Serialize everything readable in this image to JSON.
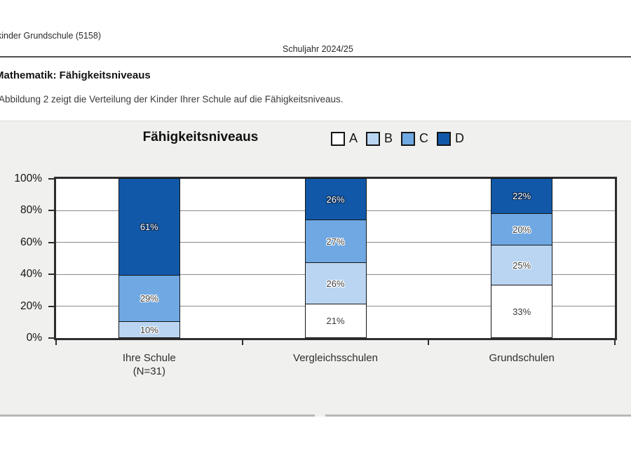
{
  "header": {
    "left": "kinder Grundschule (5158)",
    "center": "Schuljahr 2024/25"
  },
  "section": {
    "title": "Mathematik: Fähigkeitsniveaus",
    "intro": "Abbildung 2 zeigt die Verteilung der Kinder Ihrer Schule auf die Fähigkeitsniveaus."
  },
  "chart_data": {
    "type": "bar",
    "stacked": true,
    "orientation": "vertical",
    "title": "Fähigkeitsniveaus",
    "categories": [
      "Ihre Schule (N=31)",
      "Vergleichsschulen",
      "Grundschulen"
    ],
    "category_lines": [
      [
        "Ihre Schule",
        "(N=31)"
      ],
      [
        "Vergleichsschulen"
      ],
      [
        "Grundschulen"
      ]
    ],
    "series": [
      {
        "name": "A",
        "color": "#ffffff",
        "values": [
          0,
          21,
          33
        ]
      },
      {
        "name": "B",
        "color": "#b9d5f2",
        "values": [
          10,
          26,
          25
        ]
      },
      {
        "name": "C",
        "color": "#6fa8e2",
        "values": [
          29,
          27,
          20
        ]
      },
      {
        "name": "D",
        "color": "#1158a8",
        "values": [
          61,
          26,
          22
        ]
      }
    ],
    "value_suffix": "%",
    "ylim": [
      0,
      100
    ],
    "yticks": [
      "0%",
      "20%",
      "40%",
      "60%",
      "80%",
      "100%"
    ],
    "grid": "horizontal every 20%",
    "legend_position": "top-right of title",
    "plot_border_color": "#2d2d2d",
    "figure_background": "#f0f0ee"
  }
}
